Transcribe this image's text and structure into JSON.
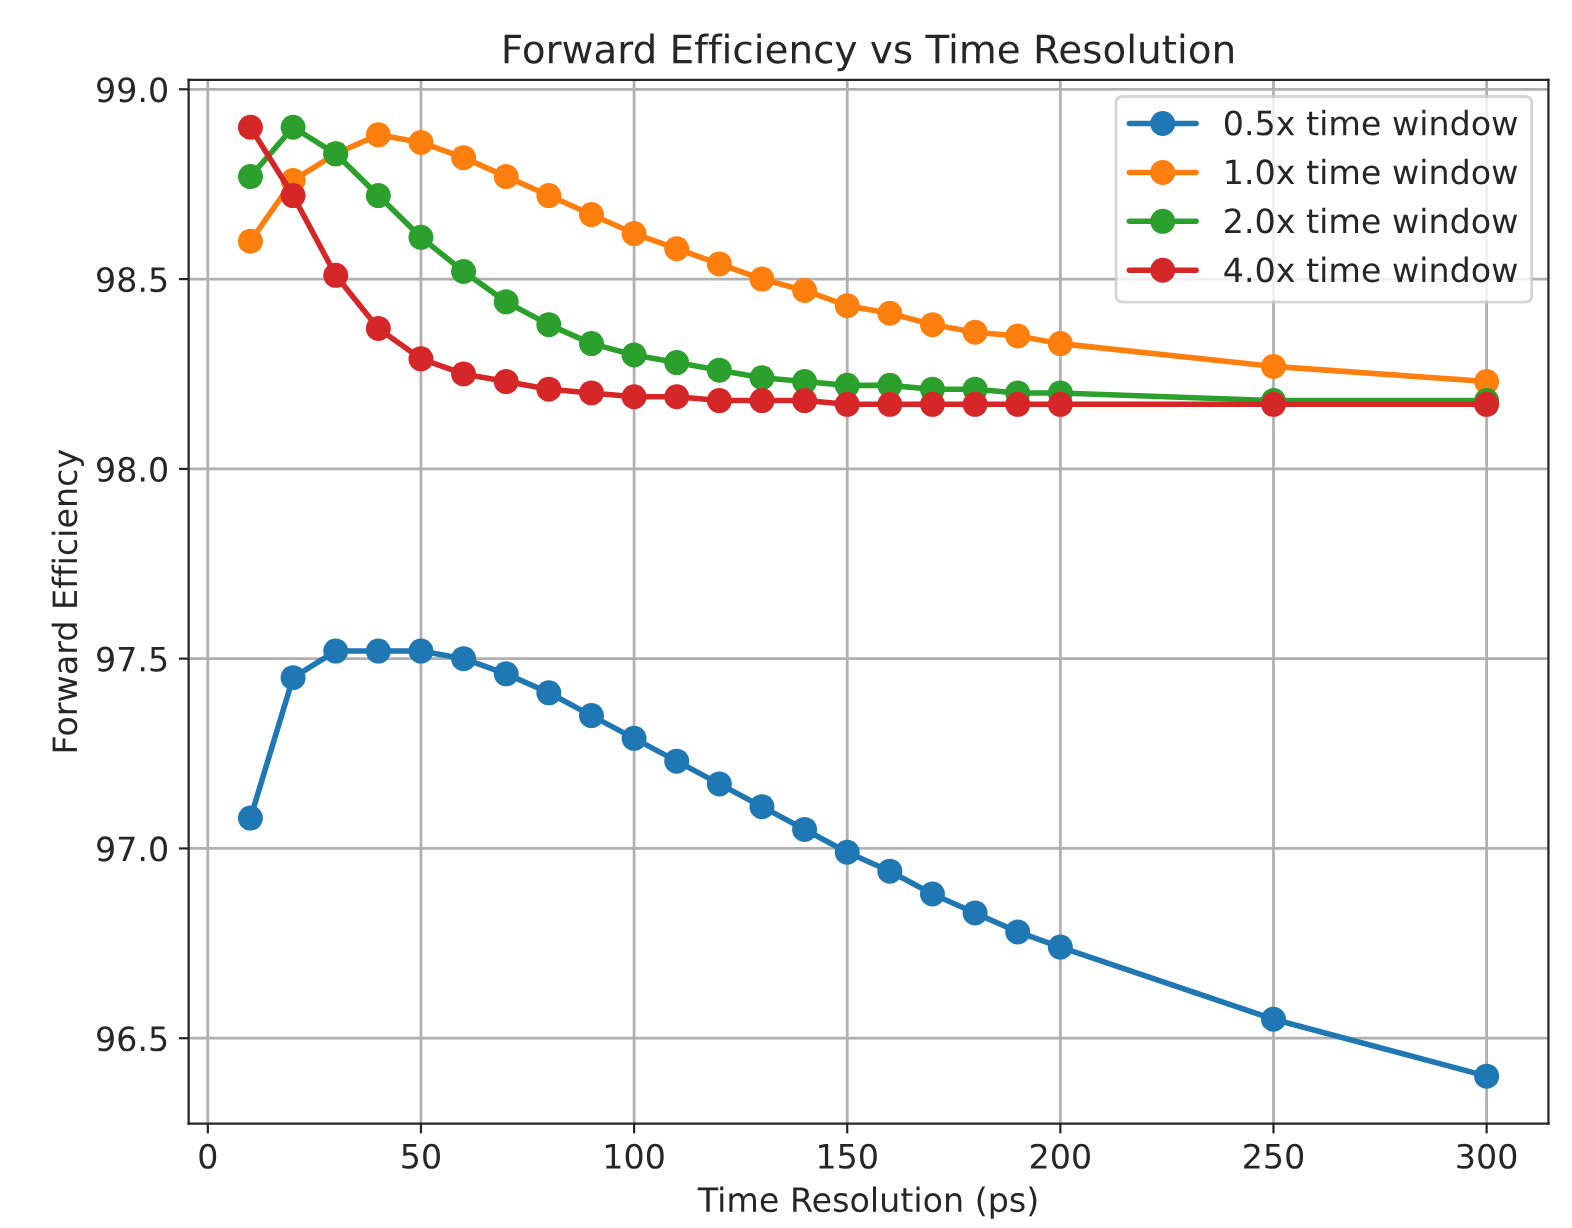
{
  "chart_data": {
    "type": "line",
    "title": "Forward Efficiency vs Time Resolution",
    "xlabel": "Time Resolution (ps)",
    "ylabel": "Forward Efficiency",
    "x": [
      10,
      20,
      30,
      40,
      50,
      60,
      70,
      80,
      90,
      100,
      110,
      120,
      130,
      140,
      150,
      160,
      170,
      180,
      190,
      200,
      250,
      300
    ],
    "series": [
      {
        "name": "0.5x time window",
        "color": "#1f77b4",
        "values": [
          97.08,
          97.45,
          97.52,
          97.52,
          97.52,
          97.5,
          97.46,
          97.41,
          97.35,
          97.29,
          97.23,
          97.17,
          97.11,
          97.05,
          96.99,
          96.94,
          96.88,
          96.83,
          96.78,
          96.74,
          96.55,
          96.4
        ]
      },
      {
        "name": "1.0x time window",
        "color": "#ff7f0e",
        "values": [
          98.6,
          98.76,
          98.83,
          98.88,
          98.86,
          98.82,
          98.77,
          98.72,
          98.67,
          98.62,
          98.58,
          98.54,
          98.5,
          98.47,
          98.43,
          98.41,
          98.38,
          98.36,
          98.35,
          98.33,
          98.27,
          98.23
        ]
      },
      {
        "name": "2.0x time window",
        "color": "#2ca02c",
        "values": [
          98.77,
          98.9,
          98.83,
          98.72,
          98.61,
          98.52,
          98.44,
          98.38,
          98.33,
          98.3,
          98.28,
          98.26,
          98.24,
          98.23,
          98.22,
          98.22,
          98.21,
          98.21,
          98.2,
          98.2,
          98.18,
          98.18
        ]
      },
      {
        "name": "4.0x time window",
        "color": "#d62728",
        "values": [
          98.9,
          98.72,
          98.51,
          98.37,
          98.29,
          98.25,
          98.23,
          98.21,
          98.2,
          98.19,
          98.19,
          98.18,
          98.18,
          98.18,
          98.17,
          98.17,
          98.17,
          98.17,
          98.17,
          98.17,
          98.17,
          98.17
        ]
      }
    ],
    "xlim": [
      -4.5,
      314.5
    ],
    "xticks": [
      0,
      50,
      100,
      150,
      200,
      250,
      300
    ],
    "ylim": [
      96.275,
      99.025
    ],
    "yticks": [
      {
        "value": 96.5,
        "label": "96.5"
      },
      {
        "value": 97.0,
        "label": "97.0"
      },
      {
        "value": 97.5,
        "label": "97.5"
      },
      {
        "value": 98.0,
        "label": "98.0"
      },
      {
        "value": 98.5,
        "label": "98.5"
      },
      {
        "value": 99.0,
        "label": "99.0"
      }
    ],
    "grid": true,
    "legend": "top right",
    "marker": "circle",
    "line_style": "solid"
  }
}
